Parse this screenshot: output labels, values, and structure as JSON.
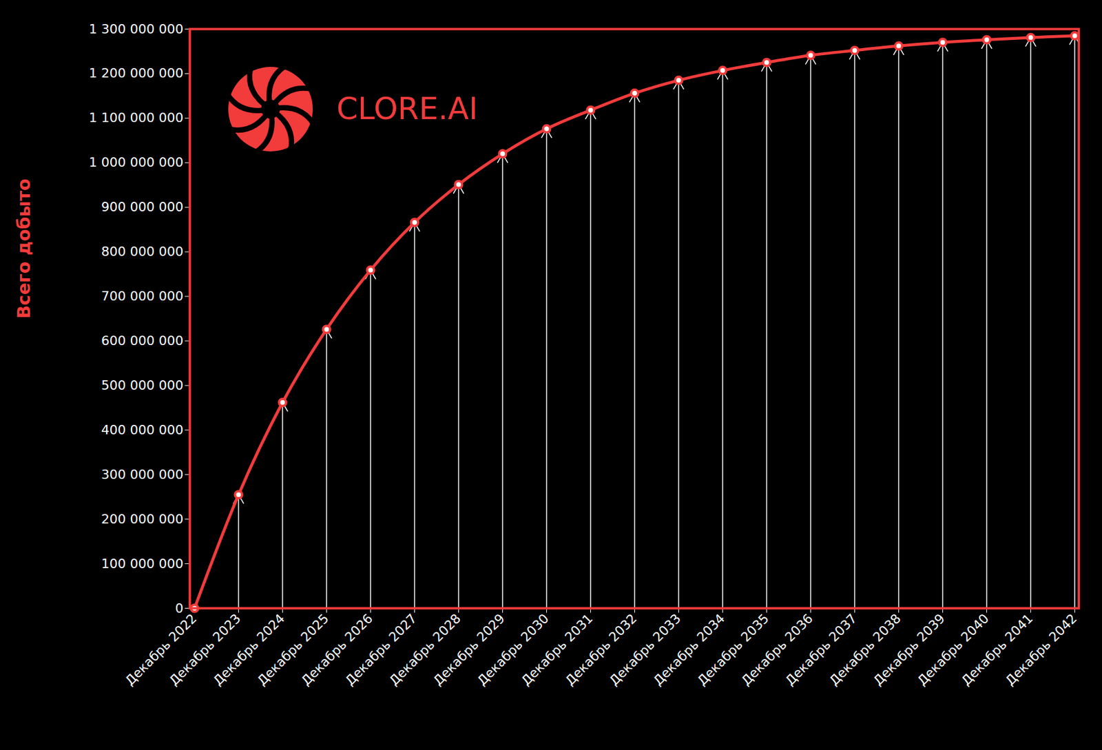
{
  "chart_data": {
    "type": "line",
    "y_label": "Всего добыто",
    "annotations": [
      "CLORE.AI"
    ],
    "color": "#f23b3b",
    "marker": "circle",
    "grid": false,
    "categories": [
      "Декабрь 2022",
      "Декабрь 2023",
      "Декабрь 2024",
      "Декабрь 2025",
      "Декабрь 2026",
      "Декабрь 2027",
      "Декабрь 2028",
      "Декабрь 2029",
      "Декабрь 2030",
      "Декабрь 2031",
      "Декабрь 2032",
      "Декабрь 2033",
      "Декабрь 2034",
      "Декабрь 2035",
      "Декабрь 2036",
      "Декабрь 2037",
      "Декабрь 2038",
      "Декабрь 2039",
      "Декабрь 2040",
      "Декабрь 2041",
      "Декабрь 2042"
    ],
    "values": [
      0,
      255000000,
      462000000,
      626000000,
      759000000,
      866000000,
      951000000,
      1020000000,
      1076000000,
      1118000000,
      1156000000,
      1185000000,
      1207000000,
      1225000000,
      1241000000,
      1252000000,
      1262000000,
      1270000000,
      1276000000,
      1281000000,
      1285000000
    ],
    "ylim": [
      0,
      1300000000
    ],
    "yticks": [
      0,
      {
        "value": 100000000,
        "label": "100 000 000"
      },
      {
        "value": 200000000,
        "label": "200 000 000"
      },
      {
        "value": 300000000,
        "label": "300 000 000"
      },
      {
        "value": 400000000,
        "label": "400 000 000"
      },
      {
        "value": 500000000,
        "label": "500 000 000"
      },
      {
        "value": 600000000,
        "label": "600 000 000"
      },
      {
        "value": 700000000,
        "label": "700 000 000"
      },
      {
        "value": 800000000,
        "label": "800 000 000"
      },
      {
        "value": 900000000,
        "label": "900 000 000"
      },
      {
        "value": 1000000000,
        "label": "1 000 000 000"
      },
      {
        "value": 1100000000,
        "label": "1 100 000 000"
      },
      {
        "value": 1200000000,
        "label": "1 200 000 000"
      },
      {
        "value": 1300000000,
        "label": "1 300 000 000"
      }
    ]
  }
}
